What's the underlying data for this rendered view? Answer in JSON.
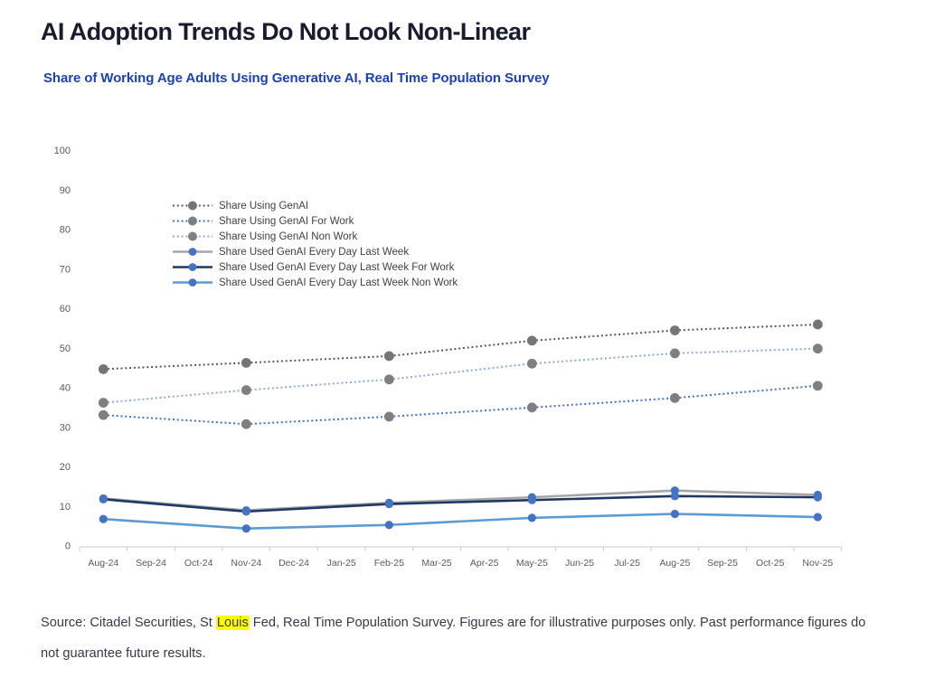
{
  "header": {
    "title": "AI Adoption Trends Do Not Look Non-Linear",
    "subtitle": "Share of Working Age Adults Using Generative AI, Real Time Population Survey"
  },
  "source": {
    "prefix": "Source: Citadel Securities, St ",
    "highlight": "Louis",
    "suffix": " Fed, Real Time Population Survey. Figures are for illustrative purposes only. Past performance figures do not guarantee future results."
  },
  "chart_data": {
    "type": "line",
    "title": "Share of Working Age Adults Using Generative AI, Real Time Population Survey",
    "x_axis_labels": [
      "Aug-24",
      "Sep-24",
      "Oct-24",
      "Nov-24",
      "Dec-24",
      "Jan-25",
      "Feb-25",
      "Mar-25",
      "Apr-25",
      "May-25",
      "Jun-25",
      "Jul-25",
      "Aug-25",
      "Sep-25",
      "Oct-25",
      "Nov-25"
    ],
    "data_point_months": [
      "Aug-24",
      "Nov-24",
      "Feb-25",
      "May-25",
      "Aug-25",
      "Nov-25"
    ],
    "data_x_indices": [
      0,
      3,
      6,
      9,
      12,
      15
    ],
    "ylim": [
      0,
      100
    ],
    "y_ticks": [
      0,
      10,
      20,
      30,
      40,
      50,
      60,
      70,
      80,
      90,
      100
    ],
    "grid": false,
    "legend_position": "inside-upper-left",
    "axis_colors": {
      "axis_line": "#d4d4d4",
      "tick": "#c9c9c9",
      "tick_label": "#595959"
    },
    "series": [
      {
        "name": "Share Using GenAI",
        "style": "dotted",
        "line_color": "#595959",
        "marker_color": "#757575",
        "values": [
          44.6,
          46.2,
          47.9,
          51.8,
          54.4,
          55.9
        ]
      },
      {
        "name": "Share Using GenAI For Work",
        "style": "dotted",
        "line_color": "#4472c4",
        "marker_color": "#7f7f7f",
        "values": [
          33.0,
          30.7,
          32.6,
          34.9,
          37.3,
          40.4
        ]
      },
      {
        "name": "Share Using GenAI Non Work",
        "style": "dotted",
        "line_color": "#8faadc",
        "marker_color": "#7f7f7f",
        "values": [
          36.1,
          39.3,
          42.0,
          46.0,
          48.6,
          49.8
        ]
      },
      {
        "name": "Share Used GenAI Every Day Last Week",
        "style": "solid",
        "line_color": "#a6a6a6",
        "marker_color": "#4472c4",
        "values": [
          11.9,
          8.9,
          10.8,
          12.2,
          13.9,
          12.8
        ]
      },
      {
        "name": "Share Used GenAI Every Day Last Week For Work",
        "style": "solid",
        "line_color": "#1f3864",
        "marker_color": "#4472c4",
        "values": [
          11.7,
          8.6,
          10.5,
          11.5,
          12.5,
          12.2
        ]
      },
      {
        "name": "Share Used GenAI Every Day Last Week Non Work",
        "style": "solid",
        "line_color": "#5b9bd5",
        "marker_color": "#4472c4",
        "values": [
          6.7,
          4.3,
          5.2,
          7.0,
          8.0,
          7.2
        ]
      }
    ]
  }
}
